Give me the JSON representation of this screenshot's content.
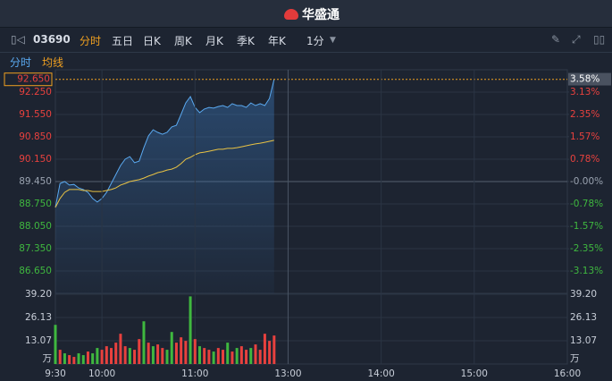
{
  "app": {
    "logo": "华盛通",
    "code": "03690",
    "tabs": [
      "分时",
      "五日",
      "日K",
      "周K",
      "月K",
      "季K",
      "年K"
    ],
    "interval": "1分",
    "subtabs": [
      "分时",
      "均线"
    ]
  },
  "chart_data": [
    {
      "type": "line",
      "x": [
        "9:30",
        "9:33",
        "9:36",
        "9:39",
        "9:42",
        "9:45",
        "9:48",
        "9:51",
        "9:54",
        "9:57",
        "10:00",
        "10:03",
        "10:06",
        "10:09",
        "10:12",
        "10:15",
        "10:18",
        "10:21",
        "10:24",
        "10:27",
        "10:30",
        "10:33",
        "10:36",
        "10:39",
        "10:42",
        "10:45",
        "10:48",
        "10:51",
        "10:54",
        "10:57",
        "11:00",
        "11:03",
        "11:06",
        "11:09",
        "11:12",
        "11:15",
        "11:18",
        "11:21",
        "11:24",
        "11:27",
        "11:30",
        "11:33",
        "11:36",
        "11:39",
        "11:42",
        "11:45",
        "11:48",
        "11:51"
      ],
      "series": [
        {
          "color": "#5aa9f0",
          "values": [
            88.64,
            89.39,
            89.45,
            89.34,
            89.36,
            89.25,
            89.2,
            89.11,
            88.92,
            88.81,
            88.92,
            89.11,
            89.39,
            89.67,
            89.95,
            90.15,
            90.23,
            90.04,
            90.09,
            90.51,
            90.88,
            91.07,
            90.99,
            90.93,
            90.99,
            91.16,
            91.21,
            91.55,
            91.91,
            92.11,
            91.77,
            91.61,
            91.72,
            91.77,
            91.75,
            91.8,
            91.83,
            91.77,
            91.89,
            91.83,
            91.83,
            91.77,
            91.91,
            91.83,
            91.89,
            91.83,
            92.05,
            92.65
          ]
        },
        {
          "color": "#e8c244",
          "values": [
            88.64,
            88.92,
            89.11,
            89.2,
            89.2,
            89.2,
            89.17,
            89.17,
            89.14,
            89.14,
            89.14,
            89.17,
            89.2,
            89.25,
            89.34,
            89.39,
            89.45,
            89.48,
            89.51,
            89.56,
            89.62,
            89.67,
            89.73,
            89.76,
            89.81,
            89.84,
            89.9,
            90.01,
            90.15,
            90.21,
            90.29,
            90.35,
            90.37,
            90.4,
            90.43,
            90.46,
            90.46,
            90.49,
            90.49,
            90.51,
            90.54,
            90.57,
            90.6,
            90.63,
            90.65,
            90.68,
            90.71,
            90.74
          ]
        }
      ],
      "xlim": [
        "9:30",
        "16:00"
      ],
      "ylim": [
        85.95,
        92.95
      ],
      "yticks": [
        {
          "value": 92.25,
          "label": "92.250"
        },
        {
          "value": 91.55,
          "label": "91.550"
        },
        {
          "value": 90.85,
          "label": "90.850"
        },
        {
          "value": 90.15,
          "label": "90.150"
        },
        {
          "value": 89.45,
          "label": "89.450"
        },
        {
          "value": 88.75,
          "label": "88.750"
        },
        {
          "value": 88.05,
          "label": "88.050"
        },
        {
          "value": 87.35,
          "label": "87.350"
        },
        {
          "value": 86.65,
          "label": "86.650"
        }
      ],
      "y2lim": [
        -3.91,
        3.91
      ],
      "y2ticks": [
        {
          "value": 3.13,
          "label": "3.13%"
        },
        {
          "value": 2.35,
          "label": "2.35%"
        },
        {
          "value": 1.57,
          "label": "1.57%"
        },
        {
          "value": 0.78,
          "label": "0.78%"
        },
        {
          "value": 0,
          "label": "-0.00%"
        },
        {
          "value": -0.78,
          "label": "-0.78%"
        },
        {
          "value": -1.57,
          "label": "-1.57%"
        },
        {
          "value": -2.35,
          "label": "-2.35%"
        },
        {
          "value": -3.13,
          "label": "-3.13%"
        }
      ],
      "last_price": {
        "value": 92.65,
        "label": "92.650"
      },
      "last_change": {
        "value": 3.58,
        "label": "3.58%"
      },
      "grid": true
    },
    {
      "type": "bar",
      "x": [
        "9:30",
        "9:33",
        "9:36",
        "9:39",
        "9:42",
        "9:45",
        "9:48",
        "9:51",
        "9:54",
        "9:57",
        "10:00",
        "10:03",
        "10:06",
        "10:09",
        "10:12",
        "10:15",
        "10:18",
        "10:21",
        "10:24",
        "10:27",
        "10:30",
        "10:33",
        "10:36",
        "10:39",
        "10:42",
        "10:45",
        "10:48",
        "10:51",
        "10:54",
        "10:57",
        "11:00",
        "11:03",
        "11:06",
        "11:09",
        "11:12",
        "11:15",
        "11:18",
        "11:21",
        "11:24",
        "11:27",
        "11:30",
        "11:33",
        "11:36",
        "11:39",
        "11:42",
        "11:45",
        "11:48",
        "11:51"
      ],
      "values": [
        22,
        8,
        6,
        5,
        4,
        6,
        5,
        7,
        6,
        9,
        8,
        10,
        9,
        12,
        17,
        10,
        9,
        8,
        14,
        24,
        12,
        10,
        11,
        9,
        8,
        18,
        12,
        15,
        13,
        38,
        14,
        10,
        9,
        8,
        7,
        9,
        8,
        12,
        7,
        9,
        10,
        8,
        9,
        11,
        8,
        17,
        13,
        16
      ],
      "colors": [
        "#3fb83f",
        "#e8413e",
        "#3fb83f",
        "#e8413e",
        "#e8413e",
        "#3fb83f",
        "#3fb83f",
        "#e8413e",
        "#3fb83f",
        "#3fb83f",
        "#e8413e",
        "#e8413e",
        "#e8413e",
        "#e8413e",
        "#e8413e",
        "#e8413e",
        "#3fb83f",
        "#e8413e",
        "#e8413e",
        "#3fb83f",
        "#e8413e",
        "#3fb83f",
        "#e8413e",
        "#e8413e",
        "#3fb83f",
        "#3fb83f",
        "#e8413e",
        "#e8413e",
        "#e8413e",
        "#3fb83f",
        "#e8413e",
        "#3fb83f",
        "#e8413e",
        "#e8413e",
        "#3fb83f",
        "#e8413e",
        "#e8413e",
        "#3fb83f",
        "#e8413e",
        "#3fb83f",
        "#e8413e",
        "#e8413e",
        "#3fb83f",
        "#e8413e",
        "#e8413e",
        "#e8413e",
        "#e8413e",
        "#e8413e"
      ],
      "xlim": [
        "9:30",
        "16:00"
      ],
      "xticks": [
        "9:30",
        "10:00",
        "11:00",
        "13:00",
        "14:00",
        "15:00",
        "16:00"
      ],
      "ylim": [
        0,
        39.2
      ],
      "yticks": [
        {
          "value": 39.2,
          "label": "39.20"
        },
        26.13,
        13.07
      ],
      "unit": "万",
      "grid": true
    }
  ]
}
